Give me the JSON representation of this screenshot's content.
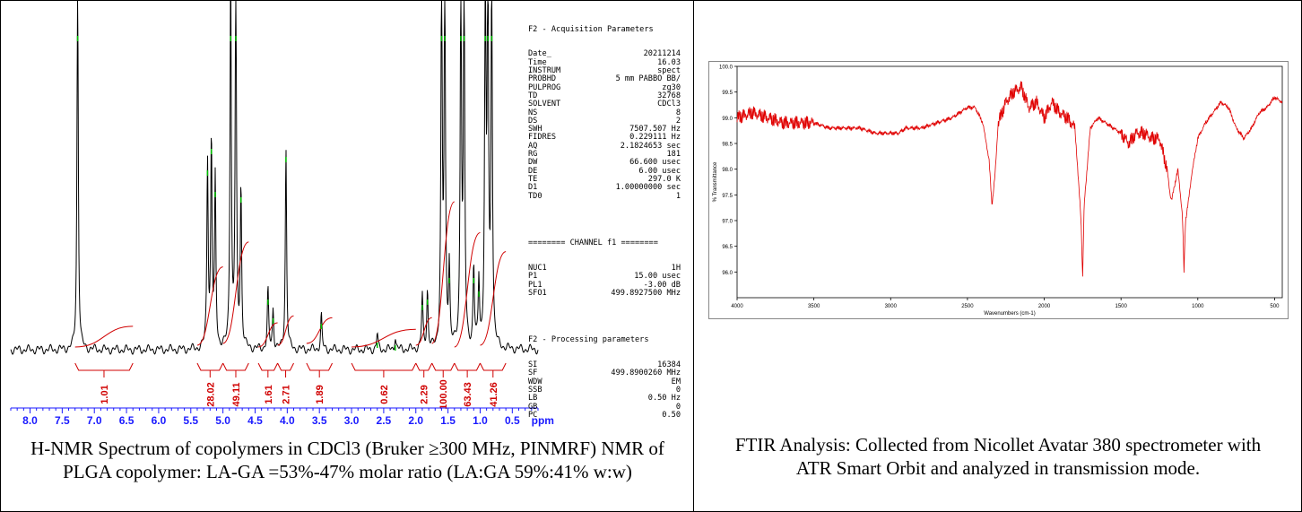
{
  "nmr": {
    "params_acq_title": "F2 - Acquisition Parameters",
    "params_acq": [
      [
        "Date_",
        "20211214"
      ],
      [
        "Time",
        "16.03"
      ],
      [
        "INSTRUM",
        "spect"
      ],
      [
        "PROBHD",
        "5 mm PABBO BB/"
      ],
      [
        "PULPROG",
        "zg30"
      ],
      [
        "TD",
        "32768"
      ],
      [
        "SOLVENT",
        "CDCl3"
      ],
      [
        "NS",
        "8"
      ],
      [
        "DS",
        "2"
      ],
      [
        "SWH",
        "7507.507 Hz"
      ],
      [
        "FIDRES",
        "0.229111 Hz"
      ],
      [
        "AQ",
        "2.1824653 sec"
      ],
      [
        "RG",
        "181"
      ],
      [
        "DW",
        "66.600 usec"
      ],
      [
        "DE",
        "6.00 usec"
      ],
      [
        "TE",
        "297.0 K"
      ],
      [
        "D1",
        "1.00000000 sec"
      ],
      [
        "TD0",
        "1"
      ]
    ],
    "params_channel_title": "======== CHANNEL f1 ========",
    "params_channel": [
      [
        "NUC1",
        "1H"
      ],
      [
        "P1",
        "15.00 usec"
      ],
      [
        "PL1",
        "-3.00 dB"
      ],
      [
        "SFO1",
        "499.8927500 MHz"
      ]
    ],
    "params_proc_title": "F2 - Processing parameters",
    "params_proc": [
      [
        "SI",
        "16384"
      ],
      [
        "SF",
        "499.8900260 MHz"
      ],
      [
        "WDW",
        "EM"
      ],
      [
        "SSB",
        "0"
      ],
      [
        "LB",
        "0.50 Hz"
      ],
      [
        "GB",
        "0"
      ],
      [
        "PC",
        "0.50"
      ]
    ],
    "caption": "H-NMR Spectrum of copolymers in CDCl3 (Bruker ≥300 MHz, PINMRF) NMR of PLGA copolymer: LA-GA =53%-47% molar ratio (LA:GA 59%:41% w:w)"
  },
  "ftir": {
    "caption": "FTIR Analysis: Collected from Nicollet Avatar 380 spectrometer with ATR Smart Orbit and analyzed in transmission mode."
  },
  "chart_data": [
    {
      "type": "line",
      "name": "1H NMR spectrum",
      "xlabel": "ppm",
      "xlim": [
        8.3,
        0.1
      ],
      "x_ticks": [
        8.0,
        7.5,
        7.0,
        6.5,
        6.0,
        5.5,
        5.0,
        4.5,
        4.0,
        3.5,
        3.0,
        2.5,
        2.0,
        1.5,
        1.0,
        0.5
      ],
      "x_tick_labels": [
        "8.0",
        "7.5",
        "7.0",
        "6.5",
        "6.0",
        "5.5",
        "5.0",
        "4.5",
        "4.0",
        "3.5",
        "3.0",
        "2.5",
        "2.0",
        "1.5",
        "1.0",
        "0.5"
      ],
      "peaks": [
        {
          "ppm": 7.26,
          "height": 1.4
        },
        {
          "ppm": 5.24,
          "height": 0.7
        },
        {
          "ppm": 5.18,
          "height": 0.78
        },
        {
          "ppm": 5.12,
          "height": 0.62
        },
        {
          "ppm": 4.88,
          "height": 1.4
        },
        {
          "ppm": 4.8,
          "height": 1.4
        },
        {
          "ppm": 4.72,
          "height": 0.6
        },
        {
          "ppm": 4.3,
          "height": 0.22
        },
        {
          "ppm": 4.22,
          "height": 0.15
        },
        {
          "ppm": 4.02,
          "height": 0.75
        },
        {
          "ppm": 3.47,
          "height": 0.13
        },
        {
          "ppm": 2.6,
          "height": 0.06
        },
        {
          "ppm": 2.32,
          "height": 0.05
        },
        {
          "ppm": 1.9,
          "height": 0.2
        },
        {
          "ppm": 1.82,
          "height": 0.22
        },
        {
          "ppm": 1.6,
          "height": 1.4
        },
        {
          "ppm": 1.55,
          "height": 1.4
        },
        {
          "ppm": 1.48,
          "height": 0.3
        },
        {
          "ppm": 1.3,
          "height": 1.4
        },
        {
          "ppm": 1.25,
          "height": 1.4
        },
        {
          "ppm": 1.1,
          "height": 0.3
        },
        {
          "ppm": 1.02,
          "height": 0.25
        },
        {
          "ppm": 0.92,
          "height": 1.4
        },
        {
          "ppm": 0.88,
          "height": 1.4
        },
        {
          "ppm": 0.82,
          "height": 1.4
        }
      ],
      "integrals": [
        {
          "from": 7.3,
          "to": 6.4,
          "label": "1.01"
        },
        {
          "from": 5.4,
          "to": 5.0,
          "label": "28.02"
        },
        {
          "from": 5.0,
          "to": 4.6,
          "label": "49.11"
        },
        {
          "from": 4.45,
          "to": 4.15,
          "label": "1.61"
        },
        {
          "from": 4.15,
          "to": 3.9,
          "label": "2.71"
        },
        {
          "from": 3.7,
          "to": 3.3,
          "label": "1.89"
        },
        {
          "from": 3.0,
          "to": 2.0,
          "label": "0.62"
        },
        {
          "from": 2.0,
          "to": 1.75,
          "label": "2.29"
        },
        {
          "from": 1.75,
          "to": 1.4,
          "label": "100.00"
        },
        {
          "from": 1.4,
          "to": 1.0,
          "label": "63.43"
        },
        {
          "from": 1.0,
          "to": 0.6,
          "label": "41.26"
        }
      ]
    },
    {
      "type": "line",
      "name": "FTIR spectrum",
      "xlabel": "Wavenumbers (cm-1)",
      "ylabel": "% Transmittance",
      "xlim": [
        4000,
        450
      ],
      "ylim": [
        95.5,
        100.0
      ],
      "x_ticks": [
        4000,
        3500,
        3000,
        2500,
        2000,
        1500,
        1000,
        500
      ],
      "y_ticks": [
        96.0,
        96.5,
        97.0,
        97.5,
        98.0,
        98.5,
        99.0,
        99.5,
        100.0
      ],
      "x": [
        4000,
        3900,
        3800,
        3700,
        3600,
        3500,
        3400,
        3300,
        3200,
        3100,
        3000,
        2950,
        2900,
        2800,
        2700,
        2600,
        2500,
        2450,
        2400,
        2360,
        2340,
        2320,
        2300,
        2250,
        2200,
        2150,
        2100,
        2050,
        2000,
        1950,
        1900,
        1850,
        1800,
        1760,
        1750,
        1740,
        1700,
        1650,
        1600,
        1550,
        1500,
        1450,
        1400,
        1350,
        1300,
        1250,
        1200,
        1180,
        1170,
        1150,
        1130,
        1100,
        1090,
        1080,
        1060,
        1040,
        1000,
        950,
        900,
        850,
        800,
        750,
        700,
        650,
        600,
        550,
        500,
        450
      ],
      "y": [
        99.0,
        99.1,
        99.0,
        98.9,
        98.9,
        98.9,
        98.8,
        98.8,
        98.8,
        98.7,
        98.7,
        98.7,
        98.8,
        98.8,
        98.9,
        99.0,
        99.2,
        99.2,
        98.9,
        98.2,
        97.3,
        97.9,
        98.9,
        99.3,
        99.5,
        99.6,
        99.2,
        99.3,
        99.0,
        99.3,
        99.1,
        99.0,
        98.8,
        97.0,
        95.9,
        97.3,
        98.8,
        99.0,
        98.9,
        98.8,
        98.7,
        98.5,
        98.7,
        98.7,
        98.6,
        98.6,
        98.0,
        97.5,
        97.4,
        97.7,
        98.0,
        97.1,
        96.0,
        97.0,
        97.4,
        97.9,
        98.6,
        98.9,
        99.1,
        99.3,
        99.2,
        98.8,
        98.6,
        98.8,
        99.1,
        99.2,
        99.4,
        99.3
      ]
    }
  ]
}
